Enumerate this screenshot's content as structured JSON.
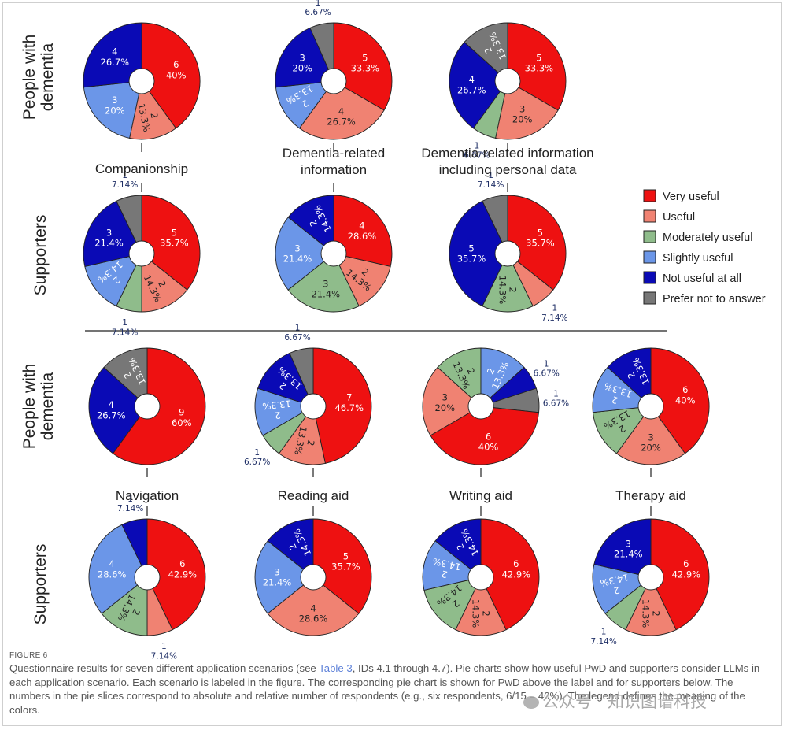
{
  "figure": {
    "label": "FIGURE 6",
    "caption_before": "Questionnaire results for seven different application scenarios (see ",
    "caption_link": "Table 3",
    "caption_after": ", IDs 4.1 through 4.7). Pie charts show how useful PwD and supporters consider LLMs in each application scenario. Each scenario is labeled in the figure. The corresponding pie chart is shown for PwD above the label and for supporters below. The numbers in the pie slices correspond to absolute and relative number of respondents (e.g., six respondents, 6/15 = 40%). The legend defines the meaning of the colors.",
    "watermark": "公众号 · 知识图谱科技"
  },
  "row_labels": {
    "pwd_line1": "People with",
    "pwd_line2": "dementia",
    "supporters": "Supporters"
  },
  "legend": [
    {
      "label": "Very useful",
      "color": "#ee1111"
    },
    {
      "label": "Useful",
      "color": "#f08272"
    },
    {
      "label": "Moderately useful",
      "color": "#8fbc8b"
    },
    {
      "label": "Slightly useful",
      "color": "#6b96e8"
    },
    {
      "label": "Not useful at all",
      "color": "#0a0ab5"
    },
    {
      "label": "Prefer not to answer",
      "color": "#777777"
    }
  ],
  "category_colors": {
    "very": "#ee1111",
    "useful": "#f08272",
    "moderate": "#8fbc8b",
    "slight": "#6b96e8",
    "not": "#0a0ab5",
    "prefer": "#777777"
  },
  "chart_data": [
    {
      "type": "pie",
      "scenario": [
        "Companionship"
      ],
      "group": "People with dementia",
      "slices": [
        {
          "cat": "very",
          "count": 6,
          "pct": "40%"
        },
        {
          "cat": "useful",
          "count": 2,
          "pct": "13.3%"
        },
        {
          "cat": "slight",
          "count": 3,
          "pct": "20%"
        },
        {
          "cat": "not",
          "count": 4,
          "pct": "26.7%"
        }
      ]
    },
    {
      "type": "pie",
      "scenario": [
        "Companionship"
      ],
      "group": "Supporters",
      "slices": [
        {
          "cat": "very",
          "count": 5,
          "pct": "35.7%"
        },
        {
          "cat": "useful",
          "count": 2,
          "pct": "14.3%"
        },
        {
          "cat": "moderate",
          "count": 1,
          "pct": "7.14%"
        },
        {
          "cat": "slight",
          "count": 2,
          "pct": "14.3%"
        },
        {
          "cat": "not",
          "count": 3,
          "pct": "21.4%"
        },
        {
          "cat": "prefer",
          "count": 1,
          "pct": "7.14%"
        }
      ]
    },
    {
      "type": "pie",
      "scenario": [
        "Dementia-related",
        "information"
      ],
      "group": "People with dementia",
      "slices": [
        {
          "cat": "very",
          "count": 5,
          "pct": "33.3%"
        },
        {
          "cat": "useful",
          "count": 4,
          "pct": "26.7%"
        },
        {
          "cat": "slight",
          "count": 2,
          "pct": "13.3%"
        },
        {
          "cat": "not",
          "count": 3,
          "pct": "20%"
        },
        {
          "cat": "prefer",
          "count": 1,
          "pct": "6.67%"
        }
      ]
    },
    {
      "type": "pie",
      "scenario": [
        "Dementia-related",
        "information"
      ],
      "group": "Supporters",
      "slices": [
        {
          "cat": "very",
          "count": 4,
          "pct": "28.6%"
        },
        {
          "cat": "useful",
          "count": 2,
          "pct": "14.3%"
        },
        {
          "cat": "moderate",
          "count": 3,
          "pct": "21.4%"
        },
        {
          "cat": "slight",
          "count": 3,
          "pct": "21.4%"
        },
        {
          "cat": "not",
          "count": 2,
          "pct": "14.3%"
        }
      ]
    },
    {
      "type": "pie",
      "scenario": [
        "Dementia-related information",
        "including personal data"
      ],
      "group": "People with dementia",
      "slices": [
        {
          "cat": "very",
          "count": 5,
          "pct": "33.3%"
        },
        {
          "cat": "useful",
          "count": 3,
          "pct": "20%"
        },
        {
          "cat": "moderate",
          "count": 1,
          "pct": "6.67%"
        },
        {
          "cat": "not",
          "count": 4,
          "pct": "26.7%"
        },
        {
          "cat": "prefer",
          "count": 2,
          "pct": "13.3%"
        }
      ]
    },
    {
      "type": "pie",
      "scenario": [
        "Dementia-related information",
        "including personal data"
      ],
      "group": "Supporters",
      "slices": [
        {
          "cat": "very",
          "count": 5,
          "pct": "35.7%"
        },
        {
          "cat": "useful",
          "count": 1,
          "pct": "7.14%"
        },
        {
          "cat": "moderate",
          "count": 2,
          "pct": "14.3%"
        },
        {
          "cat": "not",
          "count": 5,
          "pct": "35.7%"
        },
        {
          "cat": "prefer",
          "count": 1,
          "pct": "7.14%"
        }
      ]
    },
    {
      "type": "pie",
      "scenario": [
        "Navigation"
      ],
      "group": "People with dementia",
      "slices": [
        {
          "cat": "very",
          "count": 9,
          "pct": "60%"
        },
        {
          "cat": "not",
          "count": 4,
          "pct": "26.7%"
        },
        {
          "cat": "prefer",
          "count": 2,
          "pct": "13.3%"
        }
      ]
    },
    {
      "type": "pie",
      "scenario": [
        "Navigation"
      ],
      "group": "Supporters",
      "slices": [
        {
          "cat": "very",
          "count": 6,
          "pct": "42.9%"
        },
        {
          "cat": "useful",
          "count": 1,
          "pct": "7.14%"
        },
        {
          "cat": "moderate",
          "count": 2,
          "pct": "14.3%"
        },
        {
          "cat": "slight",
          "count": 4,
          "pct": "28.6%"
        },
        {
          "cat": "not",
          "count": 1,
          "pct": "7.14%"
        }
      ]
    },
    {
      "type": "pie",
      "scenario": [
        "Reading aid"
      ],
      "group": "People with dementia",
      "slices": [
        {
          "cat": "very",
          "count": 7,
          "pct": "46.7%"
        },
        {
          "cat": "useful",
          "count": 2,
          "pct": "13.3%"
        },
        {
          "cat": "moderate",
          "count": 1,
          "pct": "6.67%"
        },
        {
          "cat": "slight",
          "count": 2,
          "pct": "13.3%"
        },
        {
          "cat": "not",
          "count": 2,
          "pct": "13.3%"
        },
        {
          "cat": "prefer",
          "count": 1,
          "pct": "6.67%"
        }
      ]
    },
    {
      "type": "pie",
      "scenario": [
        "Reading aid"
      ],
      "group": "Supporters",
      "slices": [
        {
          "cat": "very",
          "count": 5,
          "pct": "35.7%"
        },
        {
          "cat": "useful",
          "count": 4,
          "pct": "28.6%"
        },
        {
          "cat": "slight",
          "count": 3,
          "pct": "21.4%"
        },
        {
          "cat": "not",
          "count": 2,
          "pct": "14.3%"
        }
      ]
    },
    {
      "type": "pie",
      "scenario": [
        "Writing aid"
      ],
      "group": "People with dementia",
      "startAngle": 210,
      "slices": [
        {
          "cat": "useful",
          "count": 3,
          "pct": "20%"
        },
        {
          "cat": "moderate",
          "count": 2,
          "pct": "13.3%"
        },
        {
          "cat": "slight",
          "count": 2,
          "pct": "13.3%"
        },
        {
          "cat": "not",
          "count": 1,
          "pct": "6.67%"
        },
        {
          "cat": "prefer",
          "count": 1,
          "pct": "6.67%"
        },
        {
          "cat": "very",
          "count": 6,
          "pct": "40%"
        }
      ]
    },
    {
      "type": "pie",
      "scenario": [
        "Writing aid"
      ],
      "group": "Supporters",
      "slices": [
        {
          "cat": "very",
          "count": 6,
          "pct": "42.9%"
        },
        {
          "cat": "useful",
          "count": 2,
          "pct": "14.3%"
        },
        {
          "cat": "moderate",
          "count": 2,
          "pct": "14.3%"
        },
        {
          "cat": "slight",
          "count": 2,
          "pct": "14.3%"
        },
        {
          "cat": "not",
          "count": 2,
          "pct": "14.3%"
        }
      ]
    },
    {
      "type": "pie",
      "scenario": [
        "Therapy aid"
      ],
      "group": "People with dementia",
      "slices": [
        {
          "cat": "very",
          "count": 6,
          "pct": "40%"
        },
        {
          "cat": "useful",
          "count": 3,
          "pct": "20%"
        },
        {
          "cat": "moderate",
          "count": 2,
          "pct": "13.3%"
        },
        {
          "cat": "slight",
          "count": 2,
          "pct": "13.3%"
        },
        {
          "cat": "not",
          "count": 2,
          "pct": "13.3%"
        }
      ]
    },
    {
      "type": "pie",
      "scenario": [
        "Therapy aid"
      ],
      "group": "Supporters",
      "slices": [
        {
          "cat": "very",
          "count": 6,
          "pct": "42.9%"
        },
        {
          "cat": "useful",
          "count": 2,
          "pct": "14.3%"
        },
        {
          "cat": "moderate",
          "count": 1,
          "pct": "7.14%"
        },
        {
          "cat": "slight",
          "count": 2,
          "pct": "14.3%"
        },
        {
          "cat": "not",
          "count": 3,
          "pct": "21.4%"
        }
      ]
    }
  ]
}
